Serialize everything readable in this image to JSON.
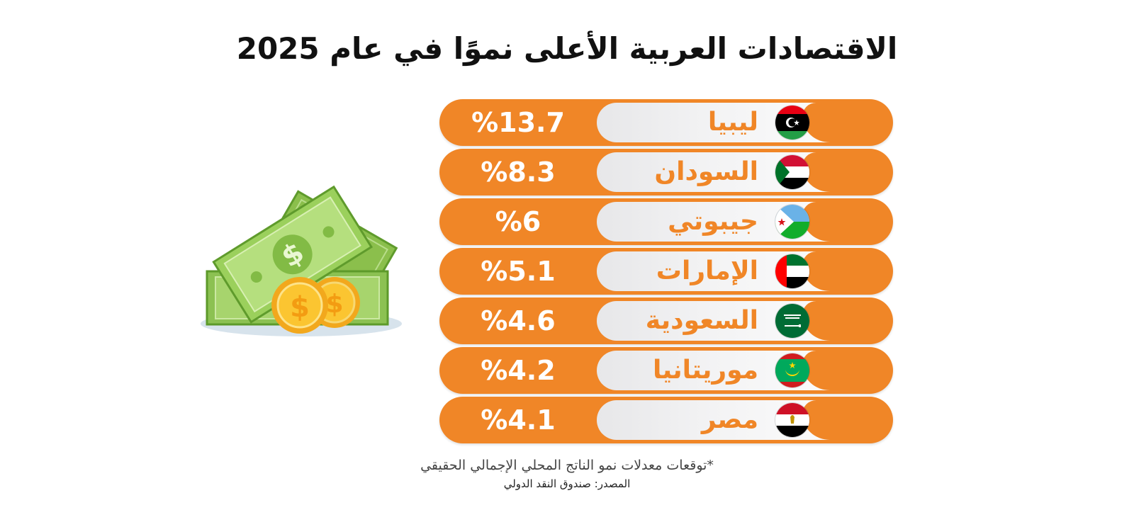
{
  "title": "الاقتصادات العربية الأعلى نموًا في عام 2025",
  "chart_data": {
    "type": "bar",
    "categories": [
      "ليبيا",
      "السودان",
      "جيبوتي",
      "الإمارات",
      "السعودية",
      "موريتانيا",
      "مصر"
    ],
    "values": [
      13.7,
      8.3,
      6,
      5.1,
      4.6,
      4.2,
      4.1
    ],
    "value_labels": [
      "%13.7",
      "%8.3",
      "%6",
      "%5.1",
      "%4.6",
      "%4.2",
      "%4.1"
    ],
    "flag_icons": [
      "libya-flag-icon",
      "sudan-flag-icon",
      "djibouti-flag-icon",
      "uae-flag-icon",
      "saudi-flag-icon",
      "mauritania-flag-icon",
      "egypt-flag-icon"
    ]
  },
  "footnote": "*توقعات معدلات نمو الناتج المحلي الإجمالي الحقيقي",
  "source": "المصدر: صندوق النقد الدولي",
  "colors": {
    "accent": "#f08627",
    "title": "#111111"
  }
}
